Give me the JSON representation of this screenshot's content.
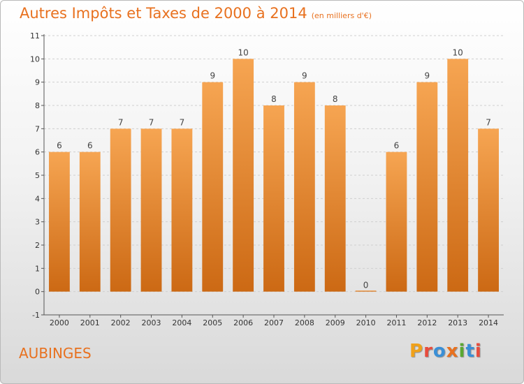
{
  "title": "Autres Impôts et Taxes de 2000 à 2014",
  "subtitle": "(en milliers d'€)",
  "place": "AUBINGES",
  "logo": {
    "letters": [
      "P",
      "r",
      "o",
      "x",
      "i",
      "t",
      "i"
    ],
    "colors": [
      "#f0a11a",
      "#e84c3d",
      "#3a8fd6",
      "#e8711f",
      "#5aa832",
      "#3a8fd6",
      "#e84c3d"
    ]
  },
  "colors": {
    "accent": "#e8711f",
    "bar_top": "#f6a552",
    "bar_bottom": "#cc6914"
  },
  "chart_data": {
    "type": "bar",
    "categories": [
      "2000",
      "2001",
      "2002",
      "2003",
      "2004",
      "2005",
      "2006",
      "2007",
      "2008",
      "2009",
      "2010",
      "2011",
      "2012",
      "2013",
      "2014"
    ],
    "values": [
      6,
      6,
      7,
      7,
      7,
      9,
      10,
      8,
      9,
      8,
      0,
      6,
      9,
      10,
      7
    ],
    "ylim": [
      -1,
      11
    ],
    "yticks": [
      -1,
      0,
      1,
      2,
      3,
      4,
      5,
      6,
      7,
      8,
      9,
      10,
      11
    ],
    "grid": true
  }
}
